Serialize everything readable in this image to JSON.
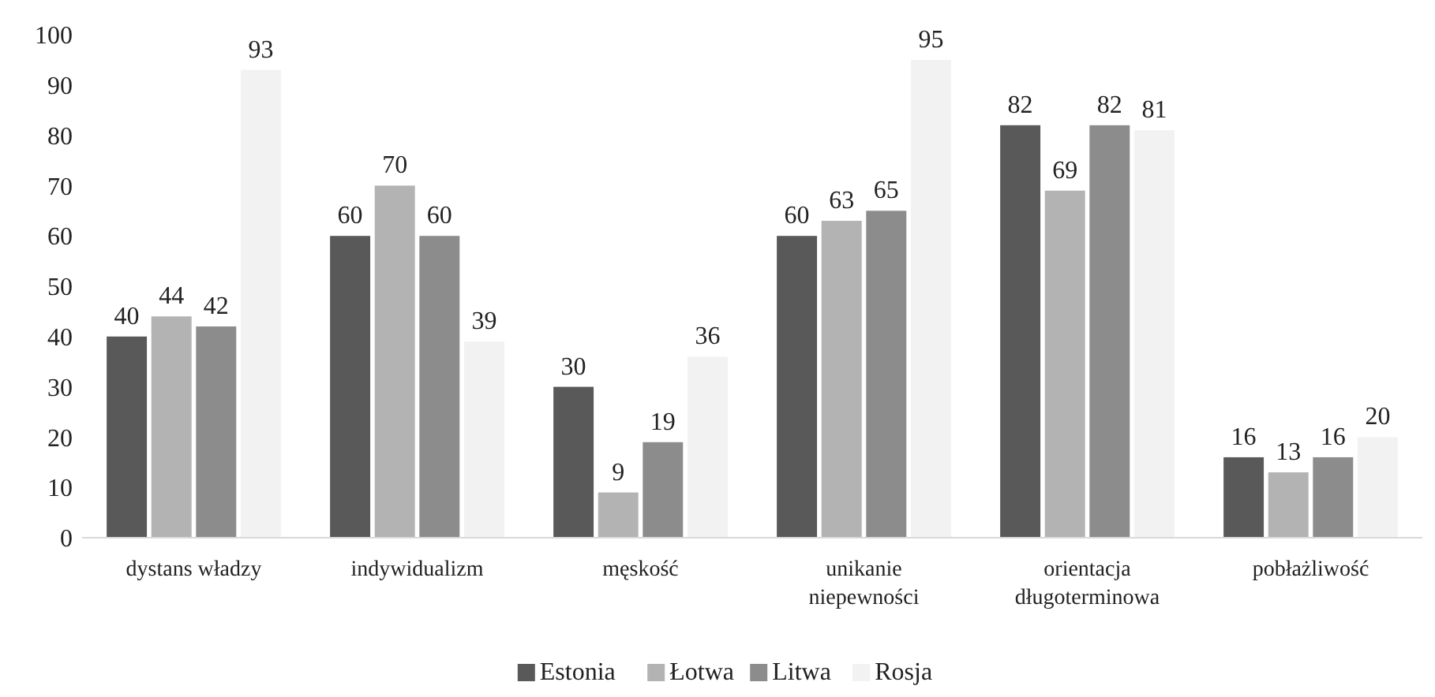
{
  "chart_data": {
    "type": "bar",
    "categories": [
      "dystans władzy",
      "indywidualizm",
      "męskość",
      "unikanie niepewności",
      "orientacja długoterminowa",
      "pobłażliwość"
    ],
    "series": [
      {
        "name": "Estonia",
        "color": "#595959",
        "values": [
          40,
          60,
          30,
          60,
          82,
          16
        ]
      },
      {
        "name": "Łotwa",
        "color": "#b3b3b3",
        "values": [
          44,
          70,
          9,
          63,
          69,
          13
        ]
      },
      {
        "name": "Litwa",
        "color": "#8c8c8c",
        "values": [
          42,
          60,
          19,
          65,
          82,
          16
        ]
      },
      {
        "name": "Rosja",
        "color": "#f2f2f2",
        "values": [
          93,
          39,
          36,
          95,
          81,
          20
        ]
      }
    ],
    "ylim": [
      0,
      100
    ],
    "yticks": [
      0,
      10,
      20,
      30,
      40,
      50,
      60,
      70,
      80,
      90,
      100
    ],
    "grid": false,
    "legend": "bottom",
    "data_labels": true
  }
}
